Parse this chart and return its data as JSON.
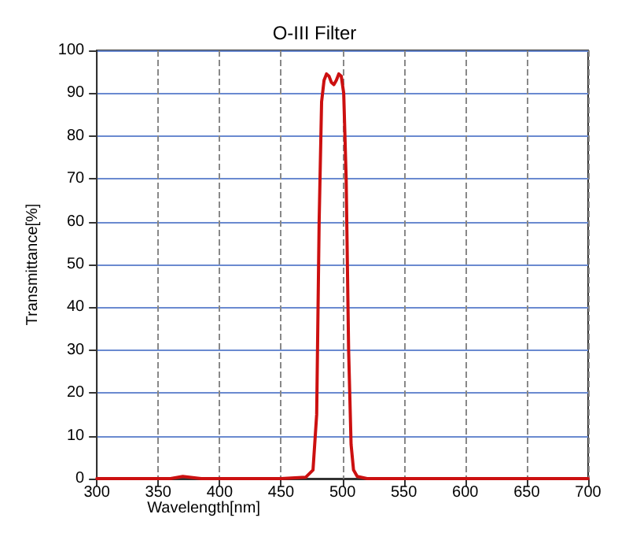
{
  "chart_data": {
    "type": "line",
    "title": "O-III Filter",
    "xlabel": "Wavelength[nm]",
    "ylabel": "Transmittance[%]",
    "x": [
      300,
      360,
      370,
      385,
      400,
      450,
      470,
      476,
      479,
      481,
      483,
      485,
      487,
      489,
      491,
      493,
      495,
      497,
      499,
      501,
      503,
      505,
      507,
      509,
      512,
      520,
      550,
      600,
      650,
      700
    ],
    "series": [
      {
        "color": "#cc1010",
        "values": [
          0,
          0,
          0.5,
          0,
          0,
          0,
          0.3,
          2,
          15,
          60,
          88,
          93,
          94.5,
          94,
          92.5,
          92,
          93,
          94.5,
          94,
          90,
          70,
          30,
          8,
          2,
          0.5,
          0,
          0,
          0,
          0,
          0
        ]
      }
    ],
    "xlim": [
      300,
      700
    ],
    "xticks": [
      300,
      350,
      400,
      450,
      500,
      550,
      600,
      650,
      700
    ],
    "ylim": [
      0,
      100
    ],
    "yticks": [
      0,
      10,
      20,
      30,
      40,
      50,
      60,
      70,
      80,
      90,
      100
    ],
    "grid": true,
    "marker": "none",
    "line_style": "solid"
  }
}
